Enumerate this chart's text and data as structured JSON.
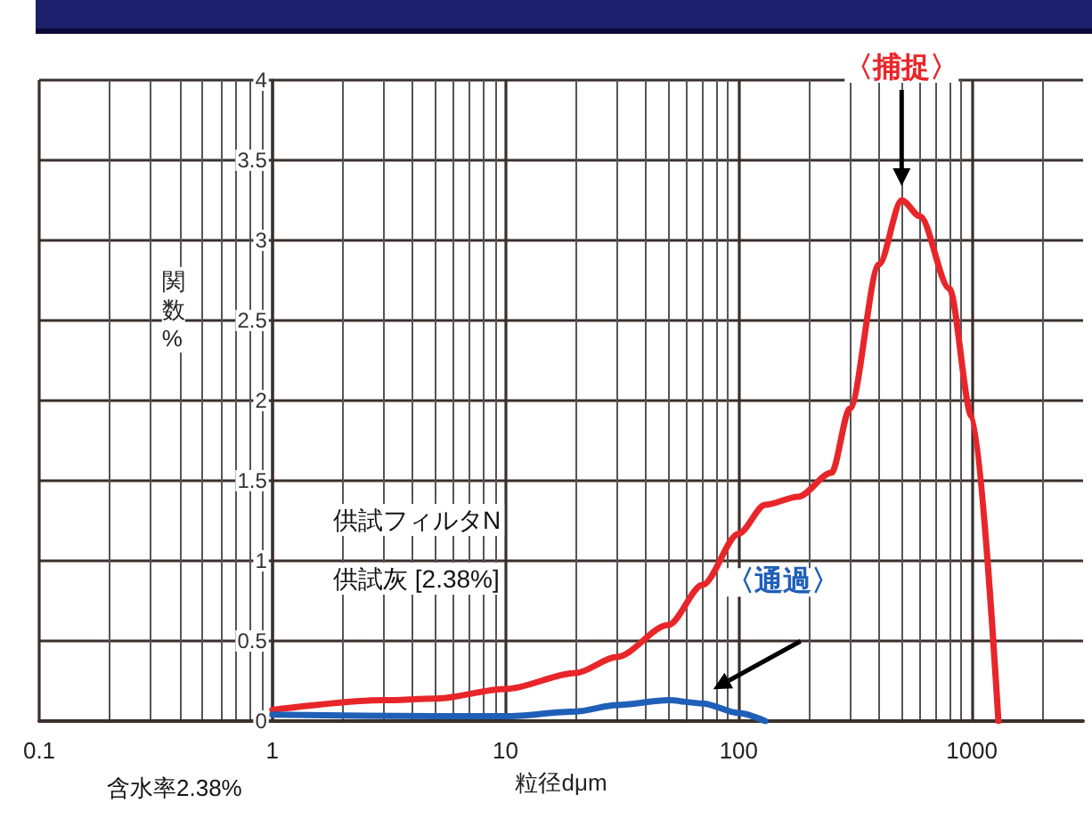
{
  "chart_data": {
    "type": "line",
    "xlabel": "粒径dμm",
    "ylabel": "関数%",
    "log": "x",
    "grid": true,
    "marker": "none",
    "line_style": "solid",
    "xlim": [
      0.1,
      3000
    ],
    "xticks": [
      0.1,
      1,
      10,
      100,
      1000
    ],
    "ylim": [
      0,
      4
    ],
    "yticks": [
      0,
      0.5,
      1,
      1.5,
      2,
      2.5,
      3,
      3.5,
      4
    ],
    "annotations": [
      "供試フィルタN",
      "供試灰 [2.38%]",
      "含水率2.38%"
    ],
    "series": [
      {
        "name": "〈捕捉〉",
        "color": "#e8262a",
        "x": [
          1,
          3,
          5,
          10,
          20,
          30,
          50,
          70,
          100,
          130,
          180,
          250,
          300,
          400,
          500,
          600,
          800,
          1000,
          1300
        ],
        "values": [
          0.07,
          0.13,
          0.14,
          0.2,
          0.3,
          0.4,
          0.6,
          0.85,
          1.17,
          1.35,
          1.4,
          1.55,
          1.95,
          2.85,
          3.25,
          3.15,
          2.7,
          1.9,
          0
        ]
      },
      {
        "name": "〈通過〉",
        "color": "#1f5fb8",
        "x": [
          1,
          5,
          10,
          20,
          30,
          50,
          70,
          100,
          130
        ],
        "values": [
          0.04,
          0.03,
          0.03,
          0.06,
          0.1,
          0.13,
          0.11,
          0.05,
          0
        ]
      }
    ]
  }
}
